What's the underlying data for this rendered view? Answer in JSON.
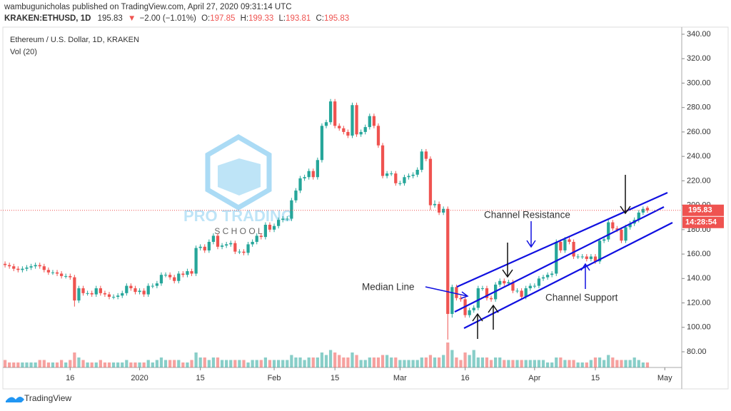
{
  "header": {
    "author_line": "wambugunicholas published on TradingView.com, April 27, 2020 09:31:14 UTC",
    "symbol": "KRAKEN:ETHUSD, 1D",
    "change": "−2.00 (−1.01%)",
    "ohlc_labels": [
      "O:",
      "H:",
      "L:",
      "C:"
    ]
  },
  "chart_data": {
    "type": "candlestick",
    "title": "Ethereum / U.S. Dollar, 1D, KRAKEN",
    "volume_label": "Vol (20)",
    "up_color": "#26a69a",
    "down_color": "#ef5350",
    "open": [
      152,
      151,
      150,
      148,
      147,
      148,
      149,
      150,
      151,
      150,
      147,
      145,
      145,
      144,
      142,
      142,
      141,
      122,
      132,
      128,
      128,
      127,
      132,
      128,
      127,
      125,
      125,
      126,
      128,
      134,
      132,
      129,
      130,
      127,
      134,
      134,
      136,
      143,
      143,
      141,
      138,
      144,
      143,
      146,
      144,
      165,
      166,
      163,
      170,
      175,
      166,
      167,
      168,
      169,
      162,
      162,
      161,
      168,
      170,
      175,
      174,
      184,
      180,
      183,
      188,
      189,
      189,
      204,
      212,
      222,
      223,
      228,
      223,
      237,
      265,
      268,
      285,
      265,
      263,
      260,
      257,
      282,
      258,
      260,
      264,
      273,
      265,
      249,
      224,
      226,
      226,
      218,
      218,
      223,
      224,
      225,
      229,
      244,
      238,
      200,
      201,
      194,
      197,
      111,
      133,
      124,
      123,
      110,
      114,
      116,
      132,
      132,
      124,
      123,
      135,
      138,
      136,
      137,
      130,
      130,
      125,
      132,
      134,
      134,
      140,
      141,
      143,
      144,
      170,
      163,
      172,
      170,
      158,
      158,
      158,
      156,
      158,
      154,
      171,
      172,
      186,
      181,
      180,
      171,
      182,
      185,
      188,
      194,
      197.85
    ],
    "high": [
      154,
      153,
      152,
      150,
      150,
      151,
      152,
      153,
      153,
      152,
      149,
      147,
      147,
      146,
      144,
      144,
      143,
      134,
      134,
      130,
      130,
      134,
      134,
      130,
      129,
      127,
      128,
      130,
      136,
      136,
      134,
      132,
      132,
      136,
      136,
      138,
      145,
      145,
      145,
      143,
      146,
      146,
      148,
      148,
      167,
      168,
      168,
      172,
      177,
      177,
      169,
      170,
      171,
      171,
      164,
      164,
      170,
      172,
      177,
      177,
      186,
      186,
      185,
      190,
      191,
      191,
      206,
      214,
      224,
      225,
      230,
      230,
      239,
      267,
      270,
      287,
      287,
      267,
      265,
      262,
      284,
      284,
      262,
      266,
      275,
      275,
      267,
      251,
      228,
      228,
      228,
      220,
      225,
      226,
      227,
      231,
      246,
      246,
      240,
      204,
      203,
      199,
      199,
      135,
      135,
      126,
      125,
      116,
      118,
      134,
      134,
      134,
      126,
      137,
      140,
      140,
      139,
      139,
      132,
      132,
      134,
      136,
      136,
      142,
      143,
      145,
      146,
      172,
      172,
      174,
      174,
      172,
      160,
      160,
      160,
      160,
      160,
      173,
      174,
      188,
      188,
      183,
      182,
      184,
      187,
      190,
      196,
      199,
      199.33
    ],
    "low": [
      149,
      148,
      146,
      145,
      145,
      146,
      147,
      148,
      148,
      145,
      143,
      143,
      142,
      140,
      140,
      139,
      117,
      120,
      126,
      126,
      125,
      125,
      126,
      125,
      123,
      123,
      123,
      124,
      126,
      130,
      127,
      127,
      125,
      125,
      132,
      132,
      134,
      141,
      139,
      136,
      136,
      141,
      141,
      142,
      142,
      163,
      161,
      161,
      168,
      164,
      164,
      165,
      166,
      160,
      160,
      159,
      159,
      166,
      168,
      172,
      172,
      178,
      178,
      181,
      186,
      187,
      187,
      202,
      210,
      220,
      221,
      221,
      221,
      235,
      263,
      266,
      263,
      261,
      258,
      255,
      255,
      256,
      256,
      258,
      262,
      263,
      247,
      222,
      222,
      224,
      216,
      216,
      216,
      221,
      222,
      223,
      227,
      236,
      196,
      198,
      192,
      192,
      90,
      108,
      122,
      121,
      108,
      108,
      112,
      114,
      130,
      122,
      121,
      121,
      133,
      134,
      134,
      128,
      128,
      123,
      123,
      130,
      132,
      132,
      138,
      139,
      141,
      142,
      161,
      161,
      168,
      156,
      156,
      156,
      154,
      154,
      152,
      152,
      169,
      170,
      179,
      178,
      169,
      169,
      180,
      183,
      186,
      192,
      193.81
    ],
    "close": [
      151,
      150,
      148,
      147,
      148,
      149,
      150,
      151,
      150,
      147,
      145,
      145,
      144,
      142,
      142,
      141,
      122,
      132,
      128,
      128,
      127,
      132,
      128,
      127,
      125,
      125,
      126,
      128,
      134,
      132,
      129,
      130,
      127,
      134,
      134,
      136,
      143,
      143,
      141,
      138,
      144,
      143,
      146,
      144,
      165,
      166,
      163,
      170,
      175,
      166,
      167,
      168,
      169,
      162,
      162,
      161,
      168,
      170,
      175,
      174,
      184,
      180,
      183,
      188,
      189,
      189,
      204,
      212,
      222,
      223,
      228,
      223,
      237,
      265,
      268,
      285,
      265,
      263,
      260,
      257,
      282,
      258,
      260,
      264,
      273,
      265,
      249,
      224,
      226,
      226,
      218,
      218,
      223,
      224,
      225,
      229,
      244,
      238,
      200,
      201,
      194,
      197,
      111,
      133,
      124,
      123,
      110,
      114,
      116,
      132,
      132,
      124,
      123,
      135,
      138,
      136,
      137,
      130,
      130,
      125,
      132,
      134,
      134,
      140,
      141,
      143,
      144,
      170,
      163,
      172,
      170,
      158,
      158,
      158,
      156,
      158,
      154,
      171,
      172,
      186,
      181,
      180,
      171,
      182,
      185,
      188,
      194,
      197,
      195.83
    ],
    "volume": [
      3,
      2,
      2,
      2,
      2,
      2,
      2,
      2,
      3,
      3,
      2,
      2,
      2,
      3,
      2,
      3,
      6,
      4,
      3,
      2,
      2,
      2,
      3,
      2,
      2,
      2,
      2,
      2,
      3,
      2,
      2,
      2,
      2,
      3,
      2,
      3,
      4,
      3,
      3,
      3,
      3,
      2,
      2,
      3,
      6,
      4,
      4,
      3,
      4,
      4,
      3,
      3,
      3,
      3,
      3,
      3,
      2,
      3,
      3,
      3,
      4,
      3,
      3,
      3,
      3,
      3,
      5,
      4,
      4,
      3,
      4,
      4,
      4,
      6,
      5,
      7,
      6,
      5,
      4,
      4,
      6,
      5,
      3,
      3,
      4,
      4,
      4,
      5,
      5,
      4,
      4,
      3,
      3,
      3,
      3,
      3,
      4,
      4,
      5,
      4,
      4,
      5,
      10,
      7,
      4,
      3,
      6,
      5,
      7,
      4,
      4,
      4,
      3,
      4,
      4,
      3,
      3,
      3,
      3,
      3,
      3,
      3,
      3,
      3,
      3,
      2,
      2,
      4,
      4,
      3,
      3,
      3,
      2,
      2,
      2,
      3,
      4,
      4,
      3,
      5,
      4,
      3,
      3,
      3,
      3,
      4,
      3,
      2,
      2
    ],
    "xlim": [
      -1,
      155
    ],
    "xticks": [
      {
        "value": 15,
        "label": "16"
      },
      {
        "value": 31,
        "label": "2020"
      },
      {
        "value": 45,
        "label": "15"
      },
      {
        "value": 62,
        "label": "Feb"
      },
      {
        "value": 76,
        "label": "15"
      },
      {
        "value": 91,
        "label": "Mar"
      },
      {
        "value": 106,
        "label": "16"
      },
      {
        "value": 122,
        "label": "Apr"
      },
      {
        "value": 136,
        "label": "15"
      },
      {
        "value": 152,
        "label": "May"
      }
    ],
    "ylim": [
      80,
      340
    ],
    "yticks": [
      {
        "value": 80,
        "label": "80.00"
      },
      {
        "value": 100,
        "label": "100.00"
      },
      {
        "value": 120,
        "label": "120.00"
      },
      {
        "value": 140,
        "label": "140.00"
      },
      {
        "value": 160,
        "label": "160.00"
      },
      {
        "value": 180,
        "label": "180.00"
      },
      {
        "value": 200,
        "label": "200.00"
      },
      {
        "value": 220,
        "label": "220.00"
      },
      {
        "value": 240,
        "label": "240.00"
      },
      {
        "value": 260,
        "label": "260.00"
      },
      {
        "value": 280,
        "label": "280.00"
      },
      {
        "value": 300,
        "label": "300.00"
      },
      {
        "value": 320,
        "label": "320.00"
      },
      {
        "value": 340,
        "label": "340.00"
      }
    ],
    "grid": false,
    "countdown": "14:28:54",
    "annotations": [
      "Channel Resistance",
      "Median Line",
      "Channel Support"
    ]
  },
  "watermark": {
    "line1": "PRO TRADING",
    "line2": "S C H O O L"
  },
  "footer": {
    "brand": "TradingView"
  }
}
